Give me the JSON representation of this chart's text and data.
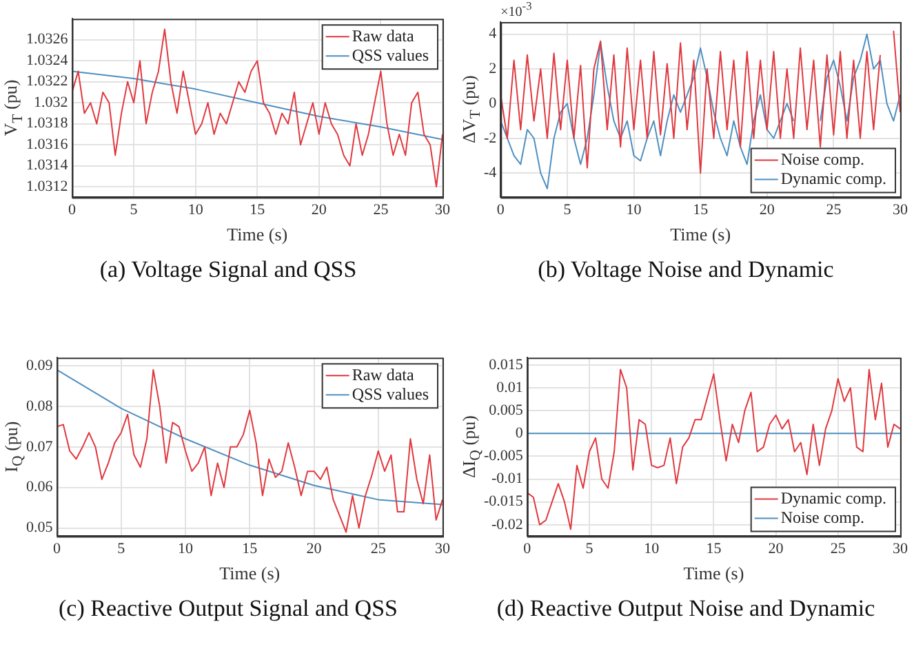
{
  "chart_data": [
    {
      "type": "line",
      "title": "(a) Voltage Signal and QSS",
      "xlabel": "Time (s)",
      "ylabel": "V$_{T}$ (pu)",
      "x": [
        0,
        0.5,
        1,
        1.5,
        2,
        2.5,
        3,
        3.5,
        4,
        4.5,
        5,
        5.5,
        6,
        6.5,
        7,
        7.5,
        8,
        8.5,
        9,
        9.5,
        10,
        10.5,
        11,
        11.5,
        12,
        12.5,
        13,
        13.5,
        14,
        14.5,
        15,
        15.5,
        16,
        16.5,
        17,
        17.5,
        18,
        18.5,
        19,
        19.5,
        20,
        20.5,
        21,
        21.5,
        22,
        22.5,
        23,
        23.5,
        24,
        24.5,
        25,
        25.5,
        26,
        26.5,
        27,
        27.5,
        28,
        28.5,
        29,
        29.5,
        30
      ],
      "series": [
        {
          "name": "Raw data",
          "color": "#e0383e",
          "values": [
            1.0321,
            1.0323,
            1.0319,
            1.032,
            1.0318,
            1.0321,
            1.032,
            1.0315,
            1.0319,
            1.0322,
            1.032,
            1.0324,
            1.0318,
            1.0321,
            1.0323,
            1.0327,
            1.0322,
            1.0319,
            1.0323,
            1.032,
            1.0317,
            1.0318,
            1.032,
            1.0317,
            1.0319,
            1.0318,
            1.032,
            1.0322,
            1.0321,
            1.0323,
            1.0324,
            1.032,
            1.0319,
            1.0317,
            1.0319,
            1.0318,
            1.0321,
            1.0316,
            1.0318,
            1.032,
            1.0317,
            1.032,
            1.0318,
            1.0317,
            1.0315,
            1.0314,
            1.0318,
            1.0315,
            1.0317,
            1.032,
            1.0323,
            1.0318,
            1.0315,
            1.0317,
            1.0315,
            1.032,
            1.0321,
            1.0317,
            1.0316,
            1.0312,
            1.0317
          ]
        },
        {
          "name": "QSS values",
          "color": "#4f8fc0",
          "x": [
            0,
            5,
            10,
            15,
            20,
            25,
            30
          ],
          "values": [
            1.0323,
            1.03223,
            1.03213,
            1.032,
            1.03187,
            1.03177,
            1.03165
          ]
        }
      ],
      "xlim": [
        0,
        30
      ],
      "xticks": [
        0,
        5,
        10,
        15,
        20,
        25,
        30
      ],
      "ylim": [
        1.0311,
        1.0328
      ],
      "yticks": [
        1.0312,
        1.0314,
        1.0316,
        1.0318,
        1.032,
        1.0322,
        1.0324,
        1.0326
      ],
      "grid": true,
      "legend": "top right"
    },
    {
      "type": "line",
      "title": "(b) Voltage Noise and Dynamic",
      "xlabel": "Time (s)",
      "ylabel": "ΔV$_{T}$ (pu)",
      "annotations": [
        "×10$^{-3}$"
      ],
      "x": [
        0,
        0.5,
        1,
        1.5,
        2,
        2.5,
        3,
        3.5,
        4,
        4.5,
        5,
        5.5,
        6,
        6.5,
        7,
        7.5,
        8,
        8.5,
        9,
        9.5,
        10,
        10.5,
        11,
        11.5,
        12,
        12.5,
        13,
        13.5,
        14,
        14.5,
        15,
        15.5,
        16,
        16.5,
        17,
        17.5,
        18,
        18.5,
        19,
        19.5,
        20,
        20.5,
        21,
        21.5,
        22,
        22.5,
        23,
        23.5,
        24,
        24.5,
        25,
        25.5,
        26,
        26.5,
        27,
        27.5,
        28,
        28.5,
        29,
        29.5,
        30
      ],
      "series": [
        {
          "name": "Noise comp.",
          "color": "#e0383e",
          "values": [
            0.5,
            -2,
            2.5,
            -1.5,
            2.8,
            -1,
            2,
            -2,
            2.9,
            -1.5,
            2.5,
            -2,
            2.2,
            -3.7,
            2,
            3.6,
            -1.5,
            2.8,
            -2.5,
            3.2,
            -1.5,
            2.5,
            -2,
            3,
            -1.8,
            2.3,
            -2,
            3.5,
            -1.5,
            2.5,
            -4,
            2,
            -2,
            3,
            -1.5,
            2.5,
            -2.5,
            3,
            -2,
            2.5,
            -1.5,
            3,
            -2,
            2,
            -2,
            3.2,
            -1.5,
            2.5,
            -2.5,
            2.8,
            -1.8,
            3,
            -2,
            2.5,
            -2,
            3,
            -1.5,
            2.8,
            null,
            4.2,
            -0.5
          ]
        },
        {
          "name": "Dynamic comp.",
          "color": "#4f8fc0",
          "values": [
            -1,
            -2,
            -3,
            -3.5,
            -1.5,
            -2,
            -4,
            -4.9,
            -2,
            -0.5,
            0,
            -2,
            -3.5,
            -2,
            0.5,
            3.5,
            1,
            -1,
            -2,
            -1,
            -3,
            -3.3,
            -2,
            -1,
            -3,
            -1,
            0.5,
            -0.5,
            0.5,
            1.5,
            3.2,
            1.5,
            -0.5,
            -2,
            -3,
            -1,
            -2.5,
            -3.5,
            -1,
            0.5,
            -1.5,
            -2,
            -1,
            0,
            -1,
            null,
            null,
            null,
            -1,
            1.5,
            2.5,
            1,
            -1,
            1.5,
            2.5,
            4,
            2,
            2.5,
            0,
            -1,
            0.5
          ]
        }
      ],
      "xlim": [
        0,
        30
      ],
      "xticks": [
        0,
        5,
        10,
        15,
        20,
        25,
        30
      ],
      "ylim": [
        -5.4,
        4.7
      ],
      "yticks": [
        -4,
        -2,
        0,
        2,
        4
      ],
      "grid": true,
      "legend": "bottom right"
    },
    {
      "type": "line",
      "title": "(c) Reactive Output Signal and QSS",
      "xlabel": "Time (s)",
      "ylabel": "I$_{Q}$ (pu)",
      "x": [
        0,
        0.5,
        1,
        1.5,
        2,
        2.5,
        3,
        3.5,
        4,
        4.5,
        5,
        5.5,
        6,
        6.5,
        7,
        7.5,
        8,
        8.5,
        9,
        9.5,
        10,
        10.5,
        11,
        11.5,
        12,
        12.5,
        13,
        13.5,
        14,
        14.5,
        15,
        15.5,
        16,
        16.5,
        17,
        17.5,
        18,
        18.5,
        19,
        19.5,
        20,
        20.5,
        21,
        21.5,
        22,
        22.5,
        23,
        23.5,
        24,
        24.5,
        25,
        25.5,
        26,
        26.5,
        27,
        27.5,
        28,
        28.5,
        29,
        29.5,
        30
      ],
      "series": [
        {
          "name": "Raw data",
          "color": "#e0383e",
          "values": [
            0.075,
            0.0755,
            0.069,
            0.067,
            0.07,
            0.0735,
            0.07,
            0.062,
            0.066,
            0.071,
            0.0735,
            0.078,
            0.068,
            0.065,
            0.072,
            0.089,
            0.08,
            0.066,
            0.076,
            0.075,
            0.069,
            0.064,
            0.066,
            0.07,
            0.058,
            0.066,
            0.06,
            0.07,
            0.07,
            0.073,
            0.079,
            0.071,
            0.058,
            0.067,
            0.0625,
            0.064,
            0.071,
            0.065,
            0.058,
            0.064,
            0.064,
            0.062,
            0.065,
            0.057,
            0.053,
            0.049,
            0.058,
            0.05,
            0.058,
            0.063,
            0.069,
            0.064,
            0.068,
            0.054,
            0.054,
            0.072,
            0.062,
            0.056,
            0.068,
            0.052,
            0.057
          ]
        },
        {
          "name": "QSS values",
          "color": "#4f8fc0",
          "x": [
            0,
            5,
            10,
            15,
            20,
            25,
            30
          ],
          "values": [
            0.089,
            0.0795,
            0.072,
            0.0655,
            0.0605,
            0.057,
            0.0558
          ]
        }
      ],
      "xlim": [
        0,
        30
      ],
      "xticks": [
        0,
        5,
        10,
        15,
        20,
        25,
        30
      ],
      "ylim": [
        0.048,
        0.092
      ],
      "yticks": [
        0.05,
        0.06,
        0.07,
        0.08,
        0.09
      ],
      "grid": true,
      "legend": "top right"
    },
    {
      "type": "line",
      "title": "(d) Reactive Output Noise and Dynamic",
      "xlabel": "Time (s)",
      "ylabel": "ΔI$_{Q}$ (pu)",
      "x": [
        0,
        0.5,
        1,
        1.5,
        2,
        2.5,
        3,
        3.5,
        4,
        4.5,
        5,
        5.5,
        6,
        6.5,
        7,
        7.5,
        8,
        8.5,
        9,
        9.5,
        10,
        10.5,
        11,
        11.5,
        12,
        12.5,
        13,
        13.5,
        14,
        14.5,
        15,
        15.5,
        16,
        16.5,
        17,
        17.5,
        18,
        18.5,
        19,
        19.5,
        20,
        20.5,
        21,
        21.5,
        22,
        22.5,
        23,
        23.5,
        24,
        24.5,
        25,
        25.5,
        26,
        26.5,
        27,
        27.5,
        28,
        28.5,
        29,
        29.5,
        30
      ],
      "series": [
        {
          "name": "Dynamic comp.",
          "color": "#e0383e",
          "values": [
            -0.013,
            -0.014,
            -0.02,
            -0.019,
            -0.015,
            -0.011,
            -0.015,
            -0.021,
            -0.007,
            -0.012,
            -0.004,
            -0.001,
            -0.01,
            -0.012,
            -0.004,
            0.014,
            0.01,
            -0.008,
            0.003,
            0.002,
            -0.007,
            -0.0075,
            -0.007,
            -0.001,
            -0.011,
            -0.003,
            -0.001,
            0.003,
            0.003,
            0.008,
            0.013,
            0.003,
            -0.006,
            0.002,
            -0.002,
            0.005,
            0.009,
            -0.004,
            -0.003,
            0.002,
            0.004,
            0.001,
            0.003,
            -0.004,
            -0.002,
            -0.009,
            0.002,
            -0.007,
            0.001,
            0.005,
            0.012,
            0.007,
            0.01,
            -0.003,
            -0.004,
            0.014,
            0.003,
            0.011,
            -0.003,
            0.002,
            0.001
          ]
        },
        {
          "name": "Noise comp.",
          "color": "#4f8fc0",
          "values": [
            0,
            0,
            0,
            0,
            0,
            0,
            0,
            0,
            0,
            0,
            0,
            0,
            0,
            0,
            0,
            0,
            0,
            0,
            0,
            0,
            0,
            0,
            0,
            0,
            0,
            0,
            0,
            0,
            0,
            0,
            0,
            0,
            0,
            0,
            0,
            0,
            0,
            0,
            0,
            0,
            0,
            0,
            0,
            0,
            0,
            0,
            0,
            0,
            0,
            0,
            0,
            0,
            0,
            0,
            0,
            0,
            0,
            0,
            0,
            0,
            0
          ]
        }
      ],
      "xlim": [
        0,
        30
      ],
      "xticks": [
        0,
        5,
        10,
        15,
        20,
        25,
        30
      ],
      "ylim": [
        -0.0225,
        0.0166
      ],
      "yticks": [
        -0.02,
        -0.015,
        -0.01,
        -0.005,
        0,
        0.005,
        0.01,
        0.015
      ],
      "grid": true,
      "legend": "bottom right"
    }
  ]
}
